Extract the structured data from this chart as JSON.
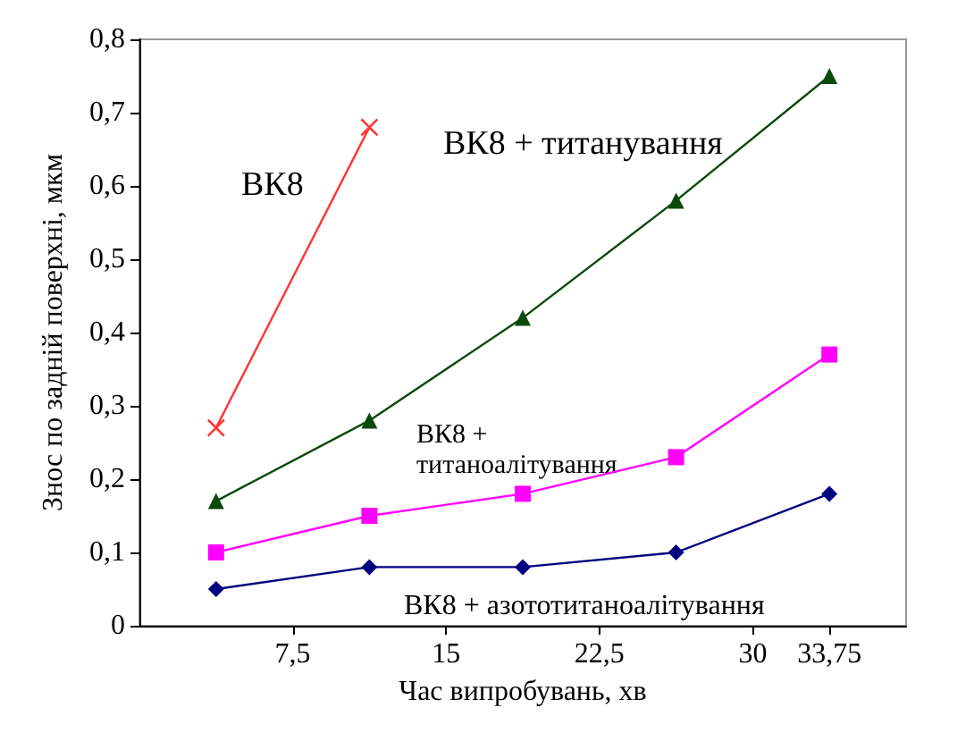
{
  "chart_data": {
    "type": "line",
    "xlabel": "Час випробувань, хв",
    "ylabel": "Знос по задній поверхні, мкм",
    "xlim": [
      0,
      37.5
    ],
    "xticks": [
      {
        "value": 7.5,
        "label": "7,5"
      },
      15,
      {
        "value": 22.5,
        "label": "22,5"
      },
      30,
      {
        "value": 33.75,
        "label": "33,75"
      }
    ],
    "ylim": [
      0,
      0.8
    ],
    "yticks": [
      0,
      {
        "value": 0.1,
        "label": "0,1"
      },
      {
        "value": 0.2,
        "label": "0,2"
      },
      {
        "value": 0.3,
        "label": "0,3"
      },
      {
        "value": 0.4,
        "label": "0,4"
      },
      {
        "value": 0.5,
        "label": "0,5"
      },
      {
        "value": 0.6,
        "label": "0,6"
      },
      {
        "value": 0.7,
        "label": "0,7"
      },
      {
        "value": 0.8,
        "label": "0,8"
      }
    ],
    "grid": false,
    "series": [
      {
        "color": "#ff3333",
        "marker": "cross",
        "x": [
          3.75,
          11.25
        ],
        "values": [
          0.27,
          0.68
        ]
      },
      {
        "color": "#0a4a0a",
        "marker": "triangle",
        "x": [
          3.75,
          11.25,
          18.75,
          26.25,
          33.75
        ],
        "values": [
          0.17,
          0.28,
          0.42,
          0.58,
          0.75
        ]
      },
      {
        "color": "#ff00ff",
        "marker": "square",
        "x": [
          3.75,
          11.25,
          18.75,
          26.25,
          33.75
        ],
        "values": [
          0.1,
          0.15,
          0.18,
          0.23,
          0.37
        ]
      },
      {
        "color": "#000080",
        "marker": "diamond",
        "x": [
          3.75,
          11.25,
          18.75,
          26.25,
          33.75
        ],
        "values": [
          0.05,
          0.08,
          0.08,
          0.1,
          0.18
        ]
      }
    ],
    "annotations": [
      "ВК8",
      "ВК8 + титанування",
      "ВК8 +\nтитаноалітування",
      "ВК8 + азототитаноалітування"
    ]
  }
}
